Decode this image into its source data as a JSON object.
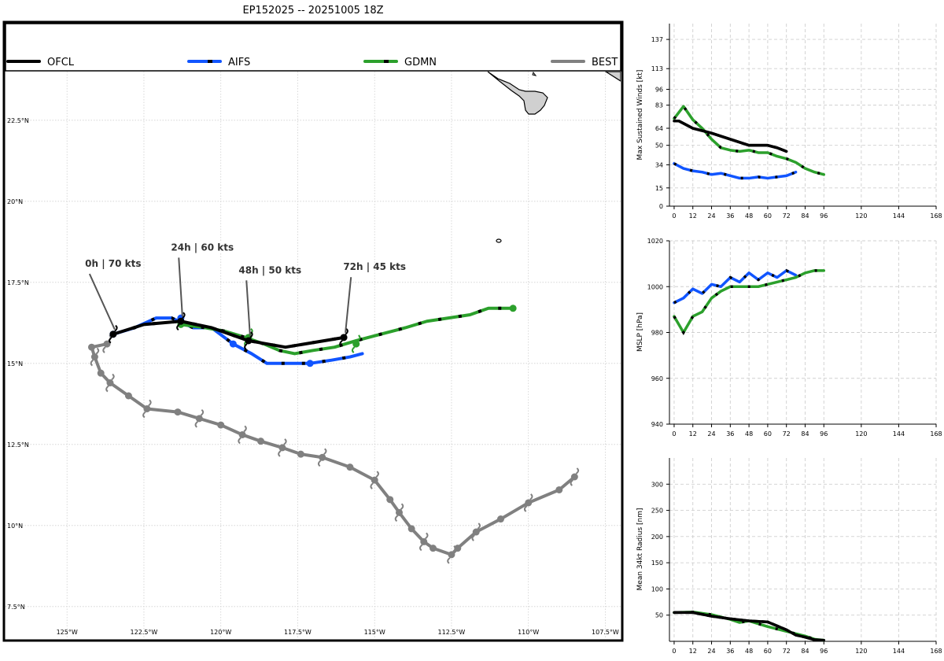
{
  "title": "EP152025 -- 20251005 18Z",
  "colors": {
    "OFCL": "#000000",
    "AIFS": "#1155ff",
    "GDMN": "#2ca02c",
    "BEST": "#808080",
    "land": "#d0d0d0",
    "grid": "#cfcfcf"
  },
  "chart_data": [
    {
      "type": "line",
      "name": "track-map",
      "legend": [
        "OFCL",
        "AIFS",
        "GDMN",
        "BEST"
      ],
      "xlim": [
        -127,
        -107
      ],
      "ylim": [
        6.5,
        24.0
      ],
      "x_ticks": [
        -125,
        -122.5,
        -120,
        -117.5,
        -115,
        -112.5,
        -110,
        -107.5
      ],
      "x_tick_labels": [
        "125°W",
        "122.5°W",
        "120°W",
        "117.5°W",
        "115°W",
        "112.5°W",
        "110°W",
        "107.5°W"
      ],
      "y_ticks": [
        7.5,
        10,
        12.5,
        15,
        17.5,
        20,
        22.5
      ],
      "y_tick_labels": [
        "7.5°N",
        "10°N",
        "12.5°N",
        "15°N",
        "17.5°N",
        "20°N",
        "22.5°N"
      ],
      "annotations": [
        {
          "text": "0h | 70 kts",
          "lon": -123.5,
          "lat": 15.9,
          "label_lon": -123.5,
          "label_lat": 18.1
        },
        {
          "text": "24h | 60 kts",
          "lon": -121.3,
          "lat": 16.3,
          "label_lon": -120.6,
          "label_lat": 18.6
        },
        {
          "text": "48h | 50 kts",
          "lon": -119.1,
          "lat": 15.7,
          "label_lon": -118.4,
          "label_lat": 17.9
        },
        {
          "text": "72h | 45 kts",
          "lon": -116.0,
          "lat": 15.8,
          "label_lon": -115.0,
          "label_lat": 18.0
        }
      ],
      "series": [
        {
          "name": "BEST",
          "lon": [
            -123.7,
            -124.2,
            -124.1,
            -123.9,
            -123.6,
            -123.0,
            -122.4,
            -121.4,
            -120.7,
            -120.0,
            -119.3,
            -118.7,
            -118.0,
            -117.4,
            -116.7,
            -115.8,
            -115.0,
            -114.5,
            -114.2,
            -113.8,
            -113.4,
            -113.1,
            -112.5,
            -112.3,
            -111.7,
            -110.9,
            -110.0,
            -109.0,
            -108.5
          ],
          "lat": [
            15.6,
            15.5,
            15.2,
            14.7,
            14.4,
            14.0,
            13.6,
            13.5,
            13.3,
            13.1,
            12.8,
            12.6,
            12.4,
            12.2,
            12.1,
            11.8,
            11.4,
            10.8,
            10.4,
            9.9,
            9.5,
            9.3,
            9.1,
            9.3,
            9.8,
            10.2,
            10.7,
            11.1,
            11.5
          ]
        },
        {
          "name": "AIFS",
          "lon": [
            -123.5,
            -122.8,
            -122.1,
            -121.6,
            -120.9,
            -120.3,
            -119.6,
            -119.0,
            -118.5,
            -117.8,
            -117.1,
            -116.4,
            -115.8,
            -115.4
          ],
          "lat": [
            15.9,
            16.1,
            16.4,
            16.4,
            16.1,
            16.1,
            15.6,
            15.3,
            15.0,
            15.0,
            15.0,
            15.1,
            15.2,
            15.3
          ]
        },
        {
          "name": "GDMN",
          "lon": [
            -121.3,
            -120.5,
            -119.9,
            -119.2,
            -118.6,
            -118.1,
            -117.6,
            -117.0,
            -116.3,
            -115.6,
            -114.8,
            -114.0,
            -113.3,
            -112.6,
            -111.9,
            -111.3,
            -110.5
          ],
          "lat": [
            16.2,
            16.1,
            16.0,
            15.8,
            15.6,
            15.4,
            15.3,
            15.4,
            15.5,
            15.7,
            15.9,
            16.1,
            16.3,
            16.4,
            16.5,
            16.7,
            16.7
          ]
        },
        {
          "name": "OFCL",
          "lon": [
            -123.5,
            -122.5,
            -121.3,
            -120.3,
            -119.1,
            -117.9,
            -116.0
          ],
          "lat": [
            15.9,
            16.2,
            16.3,
            16.1,
            15.7,
            15.5,
            15.8
          ]
        }
      ],
      "forecast_markers": {
        "AIFS": [
          [
            -123.5,
            15.9
          ],
          [
            -121.3,
            16.4
          ],
          [
            -119.6,
            15.6
          ],
          [
            -117.1,
            15.0
          ]
        ],
        "GDMN": [
          [
            -121.3,
            16.2
          ],
          [
            -119.1,
            15.8
          ],
          [
            -115.6,
            15.6
          ],
          [
            -110.5,
            16.7
          ]
        ]
      }
    },
    {
      "type": "line",
      "name": "max-winds",
      "ylabel": "Max Sustained Winds [kt]",
      "xlim": [
        -3,
        168
      ],
      "ylim": [
        0,
        150
      ],
      "x_ticks": [
        0,
        12,
        24,
        36,
        48,
        60,
        72,
        84,
        96,
        120,
        144,
        168
      ],
      "y_ticks": [
        0,
        15,
        34,
        50,
        64,
        83,
        96,
        113,
        137
      ],
      "series": [
        {
          "name": "OFCL",
          "x": [
            0,
            3,
            6,
            12,
            18,
            24,
            36,
            48,
            60,
            66,
            72
          ],
          "y": [
            70,
            70,
            68,
            64,
            62,
            60,
            55,
            50,
            50,
            48,
            45
          ]
        },
        {
          "name": "AIFS",
          "x": [
            0,
            6,
            12,
            18,
            24,
            30,
            36,
            42,
            48,
            54,
            60,
            66,
            72,
            78
          ],
          "y": [
            35,
            31,
            29,
            28,
            26,
            27,
            25,
            23,
            23,
            24,
            23,
            24,
            25,
            28
          ]
        },
        {
          "name": "GDMN",
          "x": [
            0,
            6,
            12,
            18,
            24,
            30,
            36,
            42,
            48,
            54,
            60,
            66,
            72,
            78,
            84,
            90,
            96
          ],
          "y": [
            72,
            82,
            71,
            64,
            55,
            48,
            46,
            45,
            46,
            44,
            44,
            41,
            39,
            36,
            31,
            28,
            26
          ]
        }
      ]
    },
    {
      "type": "line",
      "name": "mslp",
      "ylabel": "MSLP [hPa]",
      "xlim": [
        -3,
        168
      ],
      "ylim": [
        940,
        1020
      ],
      "x_ticks": [
        0,
        12,
        24,
        36,
        48,
        60,
        72,
        84,
        96,
        120,
        144,
        168
      ],
      "y_ticks": [
        940,
        960,
        980,
        1000,
        1020
      ],
      "series": [
        {
          "name": "AIFS",
          "x": [
            0,
            6,
            12,
            18,
            24,
            30,
            36,
            42,
            48,
            54,
            60,
            66,
            72,
            78
          ],
          "y": [
            993,
            995,
            999,
            997,
            1001,
            1000,
            1004,
            1002,
            1006,
            1003,
            1006,
            1004,
            1007,
            1005
          ]
        },
        {
          "name": "GDMN",
          "x": [
            0,
            6,
            12,
            18,
            24,
            30,
            36,
            42,
            48,
            54,
            60,
            66,
            72,
            78,
            84,
            90,
            96
          ],
          "y": [
            987,
            980,
            987,
            989,
            995,
            998,
            1000,
            1000,
            1000,
            1000,
            1001,
            1002,
            1003,
            1004,
            1006,
            1007,
            1007
          ]
        }
      ]
    },
    {
      "type": "line",
      "name": "radius-34kt",
      "ylabel": "Mean 34kt Radius [nm]",
      "xlim": [
        -3,
        168
      ],
      "ylim": [
        0,
        350
      ],
      "x_ticks": [
        0,
        12,
        24,
        36,
        48,
        60,
        72,
        84,
        96,
        120,
        144,
        168
      ],
      "y_ticks": [
        50,
        100,
        150,
        200,
        250,
        300
      ],
      "series": [
        {
          "name": "OFCL",
          "x": [
            0,
            12,
            24,
            36,
            48,
            60,
            72,
            78,
            84,
            90,
            96
          ],
          "y": [
            55,
            55,
            48,
            43,
            39,
            37,
            22,
            12,
            8,
            3,
            2
          ]
        },
        {
          "name": "GDMN",
          "x": [
            0,
            12,
            24,
            36,
            42,
            48,
            60,
            72,
            84,
            90,
            96
          ],
          "y": [
            55,
            56,
            51,
            42,
            36,
            39,
            28,
            19,
            10,
            4,
            2
          ]
        }
      ]
    }
  ]
}
